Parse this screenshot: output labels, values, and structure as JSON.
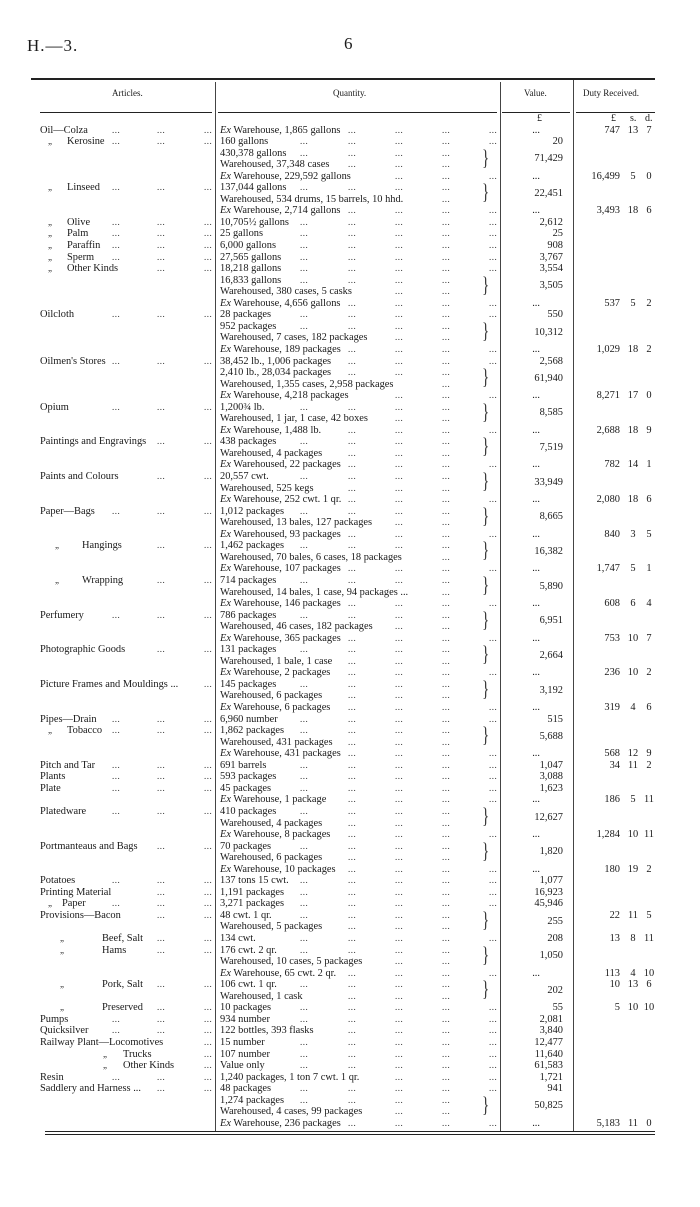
{
  "header": {
    "doc_code": "H.—3.",
    "page_number": "6"
  },
  "columns": {
    "articles": "Articles.",
    "quantity": "Quantity.",
    "value": "Value.",
    "duty": "Duty Received."
  },
  "units": {
    "value_currency": "£",
    "duty_pounds": "£",
    "duty_shillings": "s.",
    "duty_pence": "d."
  },
  "ellipsis": "...",
  "rows": [
    {
      "a": {
        "t": "Oil—Colza"
      },
      "q": "Ex Warehouse, 1,865 gallons",
      "v": "...",
      "d": [
        "747",
        "13",
        "7"
      ]
    },
    {
      "a": {
        "di": "„",
        "t": "Kerosine"
      },
      "q": "160 gallons",
      "v": "20"
    },
    {
      "q": "430,378 gallons",
      "b": "top",
      "v": "71,429"
    },
    {
      "q": "Warehoused, 37,348 cases",
      "b": "bot"
    },
    {
      "q": "Ex Warehouse, 229,592 gallons",
      "v": "...",
      "d": [
        "16,499",
        "5",
        "0"
      ]
    },
    {
      "a": {
        "di": "„",
        "t": "Linseed"
      },
      "q": "137,044 gallons",
      "b": "top",
      "v": "22,451"
    },
    {
      "q": "Warehoused, 534 drums, 15 barrels, 10 hhd.",
      "b": "bot"
    },
    {
      "q": "Ex Warehouse, 2,714 gallons",
      "v": "...",
      "d": [
        "3,493",
        "18",
        "6"
      ]
    },
    {
      "a": {
        "di": "„",
        "t": "Olive"
      },
      "q": "10,705½ gallons",
      "v": "2,612"
    },
    {
      "a": {
        "di": "„",
        "t": "Palm"
      },
      "q": "25 gallons",
      "v": "25"
    },
    {
      "a": {
        "di": "„",
        "t": "Paraffin"
      },
      "q": "6,000 gallons",
      "v": "908"
    },
    {
      "a": {
        "di": "„",
        "t": "Sperm"
      },
      "q": "27,565 gallons",
      "v": "3,767"
    },
    {
      "a": {
        "di": "„",
        "t": "Other Kinds"
      },
      "q": "18,218 gallons",
      "v": "3,554"
    },
    {
      "q": "16,833 gallons",
      "b": "top",
      "v": "3,505"
    },
    {
      "q": "Warehoused, 380 cases, 5 casks",
      "b": "bot"
    },
    {
      "q": "Ex Warehouse, 4,656 gallons",
      "v": "...",
      "d": [
        "537",
        "5",
        "2"
      ]
    },
    {
      "a": {
        "t": "Oilcloth"
      },
      "q": "28 packages",
      "v": "550"
    },
    {
      "q": "952 packages",
      "b": "top",
      "v": "10,312"
    },
    {
      "q": "Warehoused, 7 cases, 182 packages",
      "b": "bot"
    },
    {
      "q": "Ex Warehouse, 189 packages",
      "v": "...",
      "d": [
        "1,029",
        "18",
        "2"
      ]
    },
    {
      "a": {
        "t": "Oilmen's Stores"
      },
      "q": "38,452 lb., 1,006 packages",
      "v": "2,568"
    },
    {
      "q": "2,410 lb., 28,034 packages",
      "b": "top",
      "v": "61,940"
    },
    {
      "q": "Warehoused, 1,355 cases, 2,958 packages",
      "b": "bot"
    },
    {
      "q": "Ex Warehouse, 4,218 packages",
      "v": "...",
      "d": [
        "8,271",
        "17",
        "0"
      ]
    },
    {
      "a": {
        "t": "Opium"
      },
      "q": "1,200¾ lb.",
      "b": "top",
      "v": "8,585"
    },
    {
      "q": "Warehoused, 1 jar, 1 case, 42 boxes",
      "b": "bot"
    },
    {
      "q": "Ex Warehouse, 1,488 lb.",
      "v": "...",
      "d": [
        "2,688",
        "18",
        "9"
      ]
    },
    {
      "a": {
        "t": "Paintings and Engravings"
      },
      "q": "438 packages",
      "b": "top",
      "v": "7,519"
    },
    {
      "q": "Warehoused, 4 packages",
      "b": "bot"
    },
    {
      "q": "Ex Warehoused, 22 packages",
      "v": "...",
      "d": [
        "782",
        "14",
        "1"
      ]
    },
    {
      "a": {
        "t": "Paints and Colours"
      },
      "q": "20,557 cwt.",
      "b": "top",
      "v": "33,949"
    },
    {
      "q": "Warehoused, 525 kegs",
      "b": "bot"
    },
    {
      "q": "Ex Warehouse, 252 cwt. 1 qr.",
      "v": "...",
      "d": [
        "2,080",
        "18",
        "6"
      ]
    },
    {
      "a": {
        "t": "Paper—Bags"
      },
      "q": "1,012 packages",
      "b": "top",
      "v": "8,665"
    },
    {
      "q": "Warehoused, 13 bales, 127 packages",
      "b": "bot"
    },
    {
      "q": "Ex Warehoused, 93 packages",
      "v": "...",
      "d": [
        "840",
        "3",
        "5"
      ]
    },
    {
      "a": {
        "di": "„",
        "t": "Hangings"
      },
      "q": "1,462 packages",
      "b": "top",
      "v": "16,382"
    },
    {
      "q": "Warehoused, 70 bales, 6 cases, 18 packages",
      "b": "bot"
    },
    {
      "q": "Ex Warehouse, 107 packages",
      "v": "...",
      "d": [
        "1,747",
        "5",
        "1"
      ]
    },
    {
      "a": {
        "di": "„",
        "t": "Wrapping"
      },
      "q": "714 packages",
      "b": "top",
      "v": "5,890"
    },
    {
      "q": "Warehoused, 14 bales, 1 case, 94 packages ...",
      "b": "bot"
    },
    {
      "q": "Ex Warehouse, 146 packages",
      "v": "...",
      "d": [
        "608",
        "6",
        "4"
      ]
    },
    {
      "a": {
        "t": "Perfumery"
      },
      "q": "786 packages",
      "b": "top",
      "v": "6,951"
    },
    {
      "q": "Warehoused, 46 cases, 182 packages",
      "b": "bot"
    },
    {
      "q": "Ex Warehouse, 365 packages",
      "v": "...",
      "d": [
        "753",
        "10",
        "7"
      ]
    },
    {
      "a": {
        "t": "Photographic Goods"
      },
      "q": "131 packages",
      "b": "top",
      "v": "2,664"
    },
    {
      "q": "Warehoused, 1 bale, 1 case",
      "b": "bot"
    },
    {
      "q": "Ex Warehouse, 2 packages",
      "v": "...",
      "d": [
        "236",
        "10",
        "2"
      ]
    },
    {
      "a": {
        "t": "Picture Frames and Mouldings ..."
      },
      "q": "145 packages",
      "b": "top",
      "v": "3,192"
    },
    {
      "q": "Warehoused, 6 packages",
      "b": "bot"
    },
    {
      "q": "Ex Warehouse, 6 packages",
      "v": "...",
      "d": [
        "319",
        "4",
        "6"
      ]
    },
    {
      "a": {
        "t": "Pipes—Drain"
      },
      "q": "6,960 number",
      "v": "515"
    },
    {
      "a": {
        "di": "„",
        "t": "Tobacco"
      },
      "q": "1,862 packages",
      "b": "top",
      "v": "5,688"
    },
    {
      "q": "Warehoused, 431 packages",
      "b": "bot"
    },
    {
      "q": "Ex Warehouse, 431 packages",
      "v": "...",
      "d": [
        "568",
        "12",
        "9"
      ]
    },
    {
      "a": {
        "t": "Pitch and Tar"
      },
      "q": "691 barrels",
      "v": "1,047",
      "d": [
        "34",
        "11",
        "2"
      ]
    },
    {
      "a": {
        "t": "Plants"
      },
      "q": "593 packages",
      "v": "3,088"
    },
    {
      "a": {
        "t": "Plate"
      },
      "q": "45 packages",
      "v": "1,623"
    },
    {
      "q": "Ex Warehouse, 1 package",
      "v": "...",
      "d": [
        "186",
        "5",
        "11"
      ]
    },
    {
      "a": {
        "t": "Platedware"
      },
      "q": "410 packages",
      "b": "top",
      "v": "12,627"
    },
    {
      "q": "Warehoused, 4 packages",
      "b": "bot"
    },
    {
      "q": "Ex Warehouse, 8 packages",
      "v": "...",
      "d": [
        "1,284",
        "10",
        "11"
      ]
    },
    {
      "a": {
        "t": "Portmanteaus and Bags"
      },
      "q": "70 packages",
      "b": "top",
      "v": "1,820"
    },
    {
      "q": "Warehoused, 6 packages",
      "b": "bot"
    },
    {
      "q": "Ex Warehouse, 10 packages",
      "v": "...",
      "d": [
        "180",
        "19",
        "2"
      ]
    },
    {
      "a": {
        "t": "Potatoes"
      },
      "q": "137 tons 15 cwt.",
      "v": "1,077"
    },
    {
      "a": {
        "t": "Printing Material"
      },
      "q": "1,191 packages",
      "v": "16,923"
    },
    {
      "a": {
        "di": "„",
        "t": "Paper"
      },
      "q": "3,271 packages",
      "v": "45,946"
    },
    {
      "a": {
        "t": "Provisions—Bacon"
      },
      "q": "48 cwt. 1 qr.",
      "b": "top",
      "v": "255",
      "d": [
        "22",
        "11",
        "5"
      ]
    },
    {
      "q": "Warehoused, 5 packages",
      "b": "bot"
    },
    {
      "a": {
        "di": "„",
        "t": "Beef, Salt"
      },
      "q": "134 cwt.",
      "v": "208",
      "d": [
        "13",
        "8",
        "11"
      ]
    },
    {
      "a": {
        "di": "„",
        "t": "Hams"
      },
      "q": "176 cwt. 2 qr.",
      "b": "top",
      "v": "1,050"
    },
    {
      "q": "Warehoused, 10 cases, 5 packages",
      "b": "bot"
    },
    {
      "q": "Ex Warehouse, 65 cwt. 2 qr.",
      "v": "...",
      "d": [
        "113",
        "4",
        "10"
      ]
    },
    {
      "a": {
        "di": "„",
        "t": "Pork, Salt"
      },
      "q": "106 cwt. 1 qr.",
      "b": "top",
      "v": "202",
      "d": [
        "10",
        "13",
        "6"
      ]
    },
    {
      "q": "Warehoused, 1 cask",
      "b": "bot"
    },
    {
      "a": {
        "di": "„",
        "t": "Preserved"
      },
      "q": "10 packages",
      "v": "55",
      "d": [
        "5",
        "10",
        "10"
      ]
    },
    {
      "a": {
        "t": "Pumps"
      },
      "q": "934 number",
      "v": "2,081"
    },
    {
      "a": {
        "t": "Quicksilver"
      },
      "q": "122 bottles, 393 flasks",
      "v": "3,840"
    },
    {
      "a": {
        "t": "Railway Plant—Locomotives"
      },
      "q": "15 number",
      "v": "12,477"
    },
    {
      "a": {
        "di": "„",
        "t": "Trucks"
      },
      "q": "107 number",
      "v": "11,640"
    },
    {
      "a": {
        "di": "„",
        "t": "Other Kinds"
      },
      "q": "Value only",
      "v": "61,583"
    },
    {
      "a": {
        "t": "Resin"
      },
      "q": "1,240 packages, 1 ton 7 cwt. 1 qr.",
      "v": "1,721"
    },
    {
      "a": {
        "t": "Saddlery and Harness ..."
      },
      "q": "48 packages",
      "v": "941"
    },
    {
      "q": "1,274 packages",
      "b": "top",
      "v": "50,825"
    },
    {
      "q": "Warehoused, 4 cases, 99 packages",
      "b": "bot"
    },
    {
      "q": "Ex Warehouse, 236 packages",
      "v": "...",
      "d": [
        "5,183",
        "11",
        "0"
      ]
    }
  ]
}
